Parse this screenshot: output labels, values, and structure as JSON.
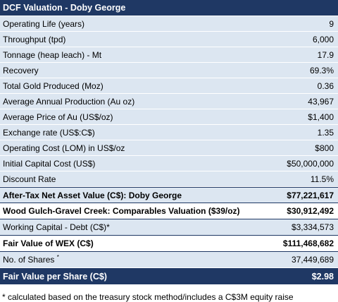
{
  "title": "DCF Valuation - Doby George",
  "rows": [
    {
      "label": "Operating Life (years)",
      "value": "9"
    },
    {
      "label": "Throughput (tpd)",
      "value": "6,000"
    },
    {
      "label": "Tonnage (heap leach) - Mt",
      "value": "17.9"
    },
    {
      "label": "Recovery",
      "value": "69.3%"
    },
    {
      "label": "Total Gold Produced (Moz)",
      "value": "0.36"
    },
    {
      "label": "Average Annual Production (Au oz)",
      "value": "43,967"
    },
    {
      "label": "Average Price of Au (US$/oz)",
      "value": "$1,400"
    },
    {
      "label": "Exchange rate (US$:C$)",
      "value": "1.35"
    },
    {
      "label": "Operating Cost (LOM) in US$/oz",
      "value": "$800"
    },
    {
      "label": "Initial Capital Cost (US$)",
      "value": "$50,000,000"
    },
    {
      "label": "Discount Rate",
      "value": "11.5%"
    }
  ],
  "after_tax_nav": {
    "label": "After-Tax Net Asset Value (C$): Doby George",
    "value": "$77,221,617"
  },
  "comparables": {
    "label": "Wood Gulch-Gravel Creek: Comparables Valuation ($39/oz)",
    "value": "$30,912,492"
  },
  "working_capital": {
    "label": "Working Capital - Debt (C$)*",
    "value": "$3,334,573"
  },
  "fair_value_wex": {
    "label": "Fair Value of WEX (C$)",
    "value": "$111,468,682"
  },
  "shares": {
    "label": "No. of Shares",
    "marker": "*",
    "value": "37,449,689"
  },
  "fair_value_per_share": {
    "label": "Fair Value per Share (C$)",
    "value": "$2.98"
  },
  "footnote": "* calculated based on the treasury stock method/includes a C$3M equity raise"
}
